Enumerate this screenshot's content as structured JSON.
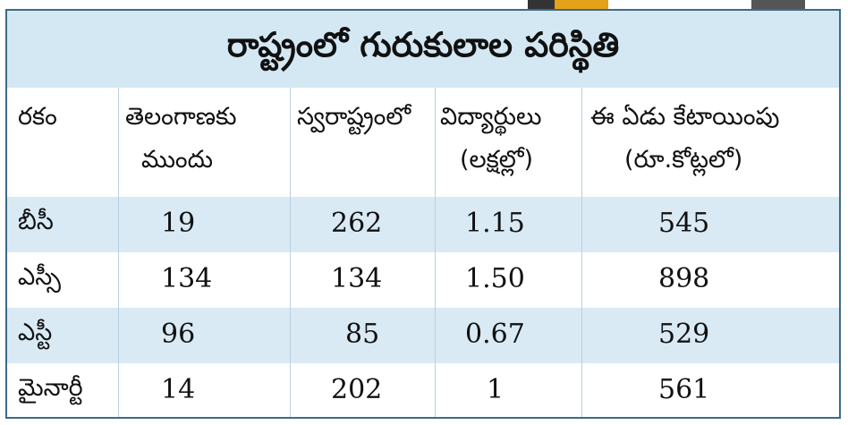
{
  "title": "రాష్ట్రంలో గురుకులాల పరిస్థితి",
  "headers": {
    "type": "రకం",
    "before_telangana": [
      "తెలంగాణకు",
      "ముందు"
    ],
    "in_state": "స్వరాష్ట్రంలో",
    "students": [
      "విద్యార్థులు",
      "(లక్షల్లో)"
    ],
    "allocation": [
      "ఈ ఏడు కేటాయింపు",
      "(రూ.కోట్లలో)"
    ]
  },
  "rows": [
    {
      "type": "బీసీ",
      "before": "19",
      "now": "262",
      "students": "1.15",
      "allocation": "545"
    },
    {
      "type": "ఎస్సీ",
      "before": "134",
      "now": "134",
      "students": "1.50",
      "allocation": "898"
    },
    {
      "type": "ఎస్టీ",
      "before": "96",
      "now": "85",
      "students": "0.67",
      "allocation": "529"
    },
    {
      "type": "మైనార్టీ",
      "before": "14",
      "now": "202",
      "students": "1",
      "allocation": "561"
    }
  ]
}
